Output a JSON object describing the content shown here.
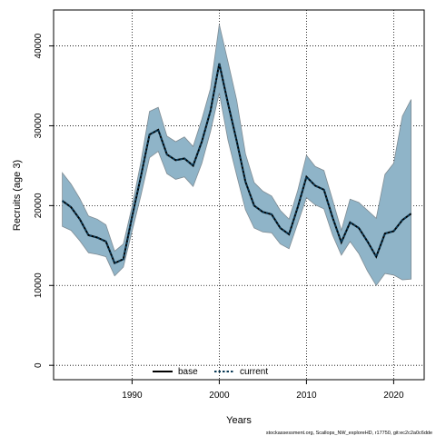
{
  "chart_data": {
    "type": "area",
    "xlabel": "Years",
    "ylabel": "Recruits (age 3)",
    "xlim": [
      1981,
      2023.5
    ],
    "ylim": [
      -1800,
      44500
    ],
    "x_ticks": [
      1990,
      2000,
      2010,
      2020
    ],
    "y_ticks": [
      0,
      10000,
      20000,
      30000,
      40000
    ],
    "grid": true,
    "legend_position": "bottom-center",
    "x": [
      1982,
      1983,
      1984,
      1985,
      1986,
      1987,
      1988,
      1989,
      1990,
      1991,
      1992,
      1993,
      1994,
      1995,
      1996,
      1997,
      1998,
      1999,
      2000,
      2001,
      2002,
      2003,
      2004,
      2005,
      2006,
      2007,
      2008,
      2009,
      2010,
      2011,
      2012,
      2013,
      2014,
      2015,
      2016,
      2017,
      2018,
      2019,
      2020,
      2021,
      2022
    ],
    "band": {
      "lower": [
        17400,
        16900,
        15600,
        14100,
        13900,
        13600,
        11200,
        12300,
        16800,
        21200,
        26000,
        26800,
        24000,
        23300,
        23600,
        22400,
        25300,
        29300,
        34100,
        28200,
        23800,
        19500,
        17200,
        16700,
        16600,
        15200,
        14600,
        17800,
        21000,
        20100,
        19600,
        16300,
        13800,
        15500,
        14000,
        11800,
        10000,
        11500,
        11300,
        10700,
        10800
      ],
      "upper": [
        24100,
        22700,
        20900,
        18700,
        18300,
        17600,
        14300,
        15200,
        19900,
        25400,
        31800,
        32300,
        28700,
        28000,
        28600,
        27400,
        30800,
        34700,
        42700,
        38000,
        33200,
        26500,
        22900,
        21800,
        21200,
        19400,
        18300,
        21900,
        26300,
        24900,
        24400,
        20700,
        16900,
        20800,
        20400,
        19400,
        18400,
        23900,
        25300,
        31200,
        33300
      ],
      "color": "#8fb4c8",
      "edge_color": "#7f8c94"
    },
    "series": [
      {
        "name": "base",
        "color": "#000000",
        "values": [
          20600,
          19800,
          18300,
          16300,
          16000,
          15500,
          12800,
          13300,
          18600,
          23600,
          28900,
          29500,
          26400,
          25700,
          25900,
          25000,
          28000,
          31900,
          37800,
          32800,
          28100,
          23000,
          20000,
          19200,
          18900,
          17200,
          16400,
          19800,
          23600,
          22500,
          22000,
          18500,
          15400,
          17900,
          17200,
          15500,
          13600,
          16500,
          16800,
          18200,
          19000
        ]
      },
      {
        "name": "current",
        "color": "#0b3a56",
        "values": [
          20600,
          19800,
          18300,
          16300,
          16000,
          15500,
          12800,
          13300,
          18600,
          23600,
          28900,
          29500,
          26400,
          25700,
          25900,
          25000,
          28000,
          31900,
          37800,
          32800,
          28100,
          23000,
          20000,
          19200,
          18900,
          17200,
          16400,
          19800,
          23600,
          22500,
          22000,
          18500,
          15400,
          17900,
          17200,
          15500,
          13600,
          16500,
          16800,
          18200,
          19000
        ]
      }
    ],
    "legend": [
      "base",
      "current"
    ]
  },
  "footer": "stockassessment.org, Scallops_NW_exploreHD, r17750, git:ec2c2a0c6dde"
}
